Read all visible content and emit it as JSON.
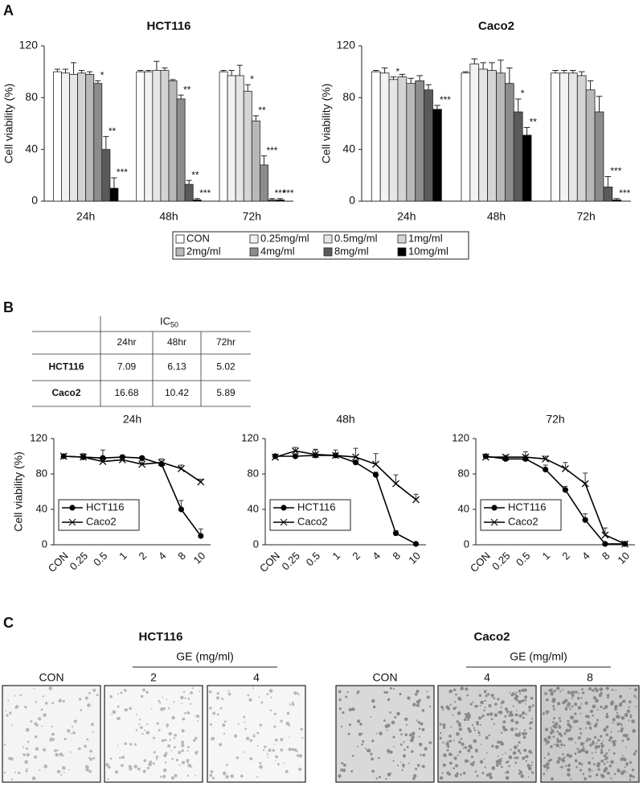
{
  "panel_labels": [
    "A",
    "B",
    "C"
  ],
  "chart_data": [
    {
      "type": "bar",
      "title": "HCT116",
      "y_label": "Cell viability (%)",
      "categories": [
        "24h",
        "48h",
        "72h"
      ],
      "ylim": [
        0,
        120
      ],
      "yticks": [
        0,
        40,
        80,
        120
      ],
      "legend": "below",
      "series": [
        {
          "name": "CON",
          "color": "#ffffff",
          "values": [
            100,
            100,
            100
          ],
          "errors": [
            2,
            1,
            1
          ],
          "significance": [
            null,
            null,
            null
          ]
        },
        {
          "name": "0.25mg/ml",
          "color": "#f2f2f2",
          "values": [
            99,
            100,
            97
          ],
          "errors": [
            3,
            1,
            4
          ],
          "significance": [
            null,
            null,
            null
          ]
        },
        {
          "name": "0.5mg/ml",
          "color": "#e6e6e6",
          "values": [
            98,
            101,
            97
          ],
          "errors": [
            9,
            7,
            8
          ],
          "significance": [
            null,
            null,
            null
          ]
        },
        {
          "name": "1mg/ml",
          "color": "#d4d4d4",
          "values": [
            99,
            101,
            85
          ],
          "errors": [
            2,
            2,
            5
          ],
          "significance": [
            null,
            null,
            "*"
          ]
        },
        {
          "name": "2mg/ml",
          "color": "#b8b8b8",
          "values": [
            98,
            93,
            62
          ],
          "errors": [
            2,
            1,
            4
          ],
          "significance": [
            null,
            null,
            "**"
          ]
        },
        {
          "name": "4mg/ml",
          "color": "#8c8c8c",
          "values": [
            91,
            79,
            28
          ],
          "errors": [
            2,
            3,
            7
          ],
          "significance": [
            "*",
            "**",
            "***"
          ]
        },
        {
          "name": "8mg/ml",
          "color": "#5a5a5a",
          "values": [
            40,
            13,
            1
          ],
          "errors": [
            10,
            3,
            1
          ],
          "significance": [
            "**",
            "**",
            "***"
          ]
        },
        {
          "name": "10mg/ml",
          "color": "#000000",
          "values": [
            10,
            1,
            1
          ],
          "errors": [
            8,
            1,
            1
          ],
          "significance": [
            "***",
            "***",
            "***"
          ]
        }
      ]
    },
    {
      "type": "bar",
      "title": "Caco2",
      "y_label": "Cell viability (%)",
      "categories": [
        "24h",
        "48h",
        "72h"
      ],
      "ylim": [
        0,
        120
      ],
      "yticks": [
        0,
        40,
        80,
        120
      ],
      "series": [
        {
          "color": "#ffffff",
          "values": [
            100,
            99,
            99
          ],
          "errors": [
            1,
            1,
            2
          ],
          "significance": [
            null,
            null,
            null
          ]
        },
        {
          "color": "#f2f2f2",
          "values": [
            99,
            106,
            99
          ],
          "errors": [
            4,
            4,
            2
          ],
          "significance": [
            null,
            null,
            null
          ]
        },
        {
          "color": "#e6e6e6",
          "values": [
            94,
            102,
            99
          ],
          "errors": [
            2,
            5,
            2
          ],
          "significance": [
            "*",
            null,
            null
          ]
        },
        {
          "color": "#d4d4d4",
          "values": [
            96,
            101,
            97
          ],
          "errors": [
            2,
            6,
            3
          ],
          "significance": [
            null,
            null,
            null
          ]
        },
        {
          "color": "#b8b8b8",
          "values": [
            91,
            99,
            86
          ],
          "errors": [
            4,
            10,
            7
          ],
          "significance": [
            null,
            null,
            null
          ]
        },
        {
          "color": "#8c8c8c",
          "values": [
            93,
            91,
            69
          ],
          "errors": [
            4,
            12,
            12
          ],
          "significance": [
            null,
            null,
            null
          ]
        },
        {
          "color": "#5a5a5a",
          "values": [
            86,
            69,
            11
          ],
          "errors": [
            4,
            10,
            8
          ],
          "significance": [
            null,
            "*",
            "***"
          ]
        },
        {
          "color": "#000000",
          "values": [
            71,
            51,
            1
          ],
          "errors": [
            3,
            6,
            1
          ],
          "significance": [
            "***",
            "**",
            "***"
          ]
        }
      ]
    },
    {
      "type": "line",
      "title": "24h",
      "y_label": "Cell viability (%)",
      "categories": [
        "CON",
        "0.25",
        "0.5",
        "1",
        "2",
        "4",
        "8",
        "10"
      ],
      "ylim": [
        0,
        120
      ],
      "yticks": [
        0,
        40,
        80,
        120
      ],
      "legend": "lower left",
      "series": [
        {
          "name": "HCT116",
          "color": "#000000",
          "marker": "circle",
          "values": [
            100,
            99,
            98,
            99,
            98,
            91,
            40,
            10
          ],
          "errors": [
            2,
            3,
            9,
            2,
            2,
            2,
            10,
            8
          ]
        },
        {
          "name": "Caco2",
          "color": "#000000",
          "marker": "x",
          "values": [
            100,
            99,
            94,
            96,
            91,
            93,
            86,
            71
          ],
          "errors": [
            1,
            4,
            2,
            2,
            4,
            4,
            4,
            3
          ]
        }
      ]
    },
    {
      "type": "line",
      "title": "48h",
      "categories": [
        "CON",
        "0.25",
        "0.5",
        "1",
        "2",
        "4",
        "8",
        "10"
      ],
      "ylim": [
        0,
        120
      ],
      "yticks": [
        0,
        40,
        80,
        120
      ],
      "legend": "lower left",
      "series": [
        {
          "name": "HCT116",
          "color": "#000000",
          "marker": "circle",
          "values": [
            100,
            100,
            101,
            101,
            93,
            79,
            13,
            1
          ],
          "errors": [
            1,
            1,
            7,
            2,
            1,
            3,
            3,
            1
          ]
        },
        {
          "name": "Caco2",
          "color": "#000000",
          "marker": "x",
          "values": [
            99,
            106,
            102,
            101,
            99,
            91,
            69,
            51
          ],
          "errors": [
            1,
            4,
            5,
            6,
            10,
            12,
            10,
            6
          ]
        }
      ]
    },
    {
      "type": "line",
      "title": "72h",
      "categories": [
        "CON",
        "0.25",
        "0.5",
        "1",
        "2",
        "4",
        "8",
        "10"
      ],
      "ylim": [
        0,
        120
      ],
      "yticks": [
        0,
        40,
        80,
        120
      ],
      "legend": "lower left",
      "series": [
        {
          "name": "HCT116",
          "color": "#000000",
          "marker": "circle",
          "values": [
            100,
            97,
            97,
            85,
            62,
            28,
            1,
            1
          ],
          "errors": [
            1,
            4,
            8,
            5,
            4,
            7,
            1,
            1
          ]
        },
        {
          "name": "Caco2",
          "color": "#000000",
          "marker": "x",
          "values": [
            99,
            99,
            99,
            97,
            86,
            69,
            11,
            1
          ],
          "errors": [
            2,
            2,
            2,
            3,
            7,
            12,
            8,
            1
          ]
        }
      ]
    }
  ],
  "ic50_table": {
    "title": "IC",
    "title_sub": "50",
    "columns": [
      "24hr",
      "48hr",
      "72hr"
    ],
    "rows": [
      [
        "HCT116",
        7.09,
        6.13,
        5.02
      ],
      [
        "Caco2",
        16.68,
        10.42,
        5.89
      ]
    ]
  },
  "invasion_panel": {
    "groups": [
      {
        "title": "HCT116",
        "treatment": "GE (mg/ml)",
        "images": [
          "CON",
          "2",
          "4"
        ]
      },
      {
        "title": "Caco2",
        "treatment": "GE (mg/ml)",
        "images": [
          "CON",
          "4",
          "8"
        ]
      }
    ]
  }
}
